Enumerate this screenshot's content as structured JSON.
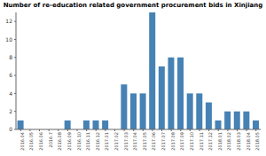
{
  "chart_data": {
    "type": "bar",
    "title": "Number of re-education related government procurement bids in Xinjiang",
    "categories": [
      "2016.04",
      "2016.05",
      "2016.06",
      "2016.7",
      "2016.08",
      "2016.09",
      "2016.10",
      "2016.11",
      "2016.12",
      "2017.01",
      "2017.02",
      "2017.03",
      "2017.04",
      "2017.05",
      "2017.06",
      "2017.07",
      "2017.08",
      "2017.09",
      "2017.10",
      "2017.11",
      "2017.12",
      "2018.01",
      "2018.02",
      "2018.03",
      "2018.04",
      "2018.05"
    ],
    "values": [
      1,
      0,
      0,
      0,
      0,
      1,
      0,
      1,
      1,
      1,
      0,
      5,
      4,
      4,
      13,
      7,
      8,
      8,
      4,
      4,
      3,
      1,
      2,
      2,
      2,
      1
    ],
    "color": "#4682b4",
    "ylim": [
      0,
      13
    ],
    "yticks": [
      0,
      2,
      4,
      6,
      8,
      10,
      12
    ],
    "grid": false
  }
}
